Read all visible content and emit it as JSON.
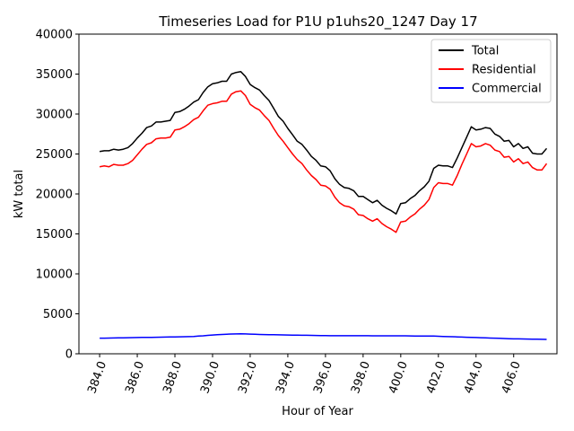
{
  "chart_data": {
    "type": "line",
    "title": "Timeseries Load for P1U p1uhs20_1247  Day 17",
    "xlabel": "Hour of Year",
    "ylabel": "kW total",
    "xlim": [
      382.9,
      408.3
    ],
    "ylim": [
      0,
      40000
    ],
    "xticks": [
      384,
      386,
      388,
      390,
      392,
      394,
      396,
      398,
      400,
      402,
      404,
      406
    ],
    "xtick_labels": [
      "384.0",
      "386.0",
      "388.0",
      "390.0",
      "392.0",
      "394.0",
      "396.0",
      "398.0",
      "400.0",
      "402.0",
      "404.0",
      "406.0"
    ],
    "yticks": [
      0,
      5000,
      10000,
      15000,
      20000,
      25000,
      30000,
      35000,
      40000
    ],
    "ytick_labels": [
      "0",
      "5000",
      "10000",
      "15000",
      "20000",
      "25000",
      "30000",
      "35000",
      "40000"
    ],
    "legend_position": "top-right",
    "x": [
      384.0,
      384.25,
      384.5,
      384.75,
      385.0,
      385.25,
      385.5,
      385.75,
      386.0,
      386.25,
      386.5,
      386.75,
      387.0,
      387.25,
      387.5,
      387.75,
      388.0,
      388.25,
      388.5,
      388.75,
      389.0,
      389.25,
      389.5,
      389.75,
      390.0,
      390.25,
      390.5,
      390.75,
      391.0,
      391.25,
      391.5,
      391.75,
      392.0,
      392.25,
      392.5,
      392.75,
      393.0,
      393.25,
      393.5,
      393.75,
      394.0,
      394.25,
      394.5,
      394.75,
      395.0,
      395.25,
      395.5,
      395.75,
      396.0,
      396.25,
      396.5,
      396.75,
      397.0,
      397.25,
      397.5,
      397.75,
      398.0,
      398.25,
      398.5,
      398.75,
      399.0,
      399.25,
      399.5,
      399.75,
      400.0,
      400.25,
      400.5,
      400.75,
      401.0,
      401.25,
      401.5,
      401.75,
      402.0,
      402.25,
      402.5,
      402.75,
      403.0,
      403.25,
      403.5,
      403.75,
      404.0,
      404.25,
      404.5,
      404.75,
      405.0,
      405.25,
      405.5,
      405.75,
      406.0,
      406.25,
      406.5,
      406.75,
      407.0,
      407.25,
      407.5,
      407.75
    ],
    "series": [
      {
        "name": "Total",
        "color": "#000000",
        "values": [
          25300,
          25400,
          25400,
          25600,
          25500,
          25600,
          25800,
          26300,
          27000,
          27600,
          28300,
          28500,
          29000,
          29000,
          29100,
          29200,
          30200,
          30300,
          30600,
          31000,
          31500,
          31800,
          32700,
          33400,
          33800,
          33900,
          34100,
          34100,
          35000,
          35200,
          35300,
          34700,
          33700,
          33300,
          33000,
          32300,
          31700,
          30700,
          29700,
          29100,
          28200,
          27400,
          26600,
          26200,
          25500,
          24700,
          24200,
          23500,
          23400,
          22900,
          21900,
          21200,
          20800,
          20700,
          20400,
          19700,
          19700,
          19300,
          18900,
          19200,
          18600,
          18200,
          17900,
          17500,
          18800,
          18900,
          19400,
          19800,
          20400,
          20900,
          21600,
          23200,
          23600,
          23500,
          23500,
          23300,
          24500,
          25800,
          27100,
          28400,
          28000,
          28100,
          28300,
          28200,
          27500,
          27200,
          26600,
          26700,
          25900,
          26300,
          25700,
          25900,
          25100,
          25000,
          25000,
          25700
        ]
      },
      {
        "name": "Residential",
        "color": "#ff0000",
        "values": [
          23400,
          23500,
          23400,
          23700,
          23600,
          23600,
          23800,
          24200,
          24900,
          25600,
          26200,
          26400,
          26900,
          27000,
          27000,
          27100,
          28000,
          28100,
          28400,
          28800,
          29300,
          29600,
          30400,
          31100,
          31300,
          31400,
          31600,
          31600,
          32500,
          32800,
          32900,
          32300,
          31200,
          30800,
          30500,
          29800,
          29200,
          28200,
          27300,
          26600,
          25800,
          25000,
          24300,
          23800,
          23000,
          22300,
          21800,
          21100,
          21000,
          20600,
          19600,
          18900,
          18500,
          18400,
          18100,
          17400,
          17300,
          16900,
          16600,
          16900,
          16300,
          15900,
          15600,
          15200,
          16500,
          16600,
          17100,
          17500,
          18100,
          18600,
          19300,
          20800,
          21400,
          21300,
          21300,
          21100,
          22300,
          23700,
          25000,
          26300,
          25900,
          26000,
          26300,
          26100,
          25500,
          25300,
          24600,
          24700,
          24000,
          24400,
          23800,
          24000,
          23300,
          23000,
          23000,
          23800
        ]
      },
      {
        "name": "Commercial",
        "color": "#0000ff",
        "values": [
          1950,
          1960,
          1970,
          1980,
          1990,
          2000,
          2010,
          2020,
          2030,
          2040,
          2050,
          2060,
          2070,
          2080,
          2090,
          2100,
          2110,
          2120,
          2130,
          2150,
          2170,
          2210,
          2250,
          2300,
          2350,
          2390,
          2420,
          2450,
          2470,
          2480,
          2490,
          2480,
          2460,
          2440,
          2420,
          2400,
          2390,
          2380,
          2370,
          2360,
          2350,
          2340,
          2330,
          2320,
          2310,
          2300,
          2290,
          2280,
          2270,
          2260,
          2260,
          2260,
          2260,
          2260,
          2260,
          2260,
          2260,
          2260,
          2250,
          2250,
          2250,
          2250,
          2250,
          2250,
          2250,
          2250,
          2240,
          2230,
          2230,
          2230,
          2230,
          2210,
          2190,
          2170,
          2150,
          2130,
          2110,
          2090,
          2070,
          2050,
          2030,
          2010,
          1990,
          1970,
          1950,
          1930,
          1910,
          1890,
          1870,
          1860,
          1850,
          1840,
          1830,
          1820,
          1810,
          1800
        ]
      }
    ]
  }
}
